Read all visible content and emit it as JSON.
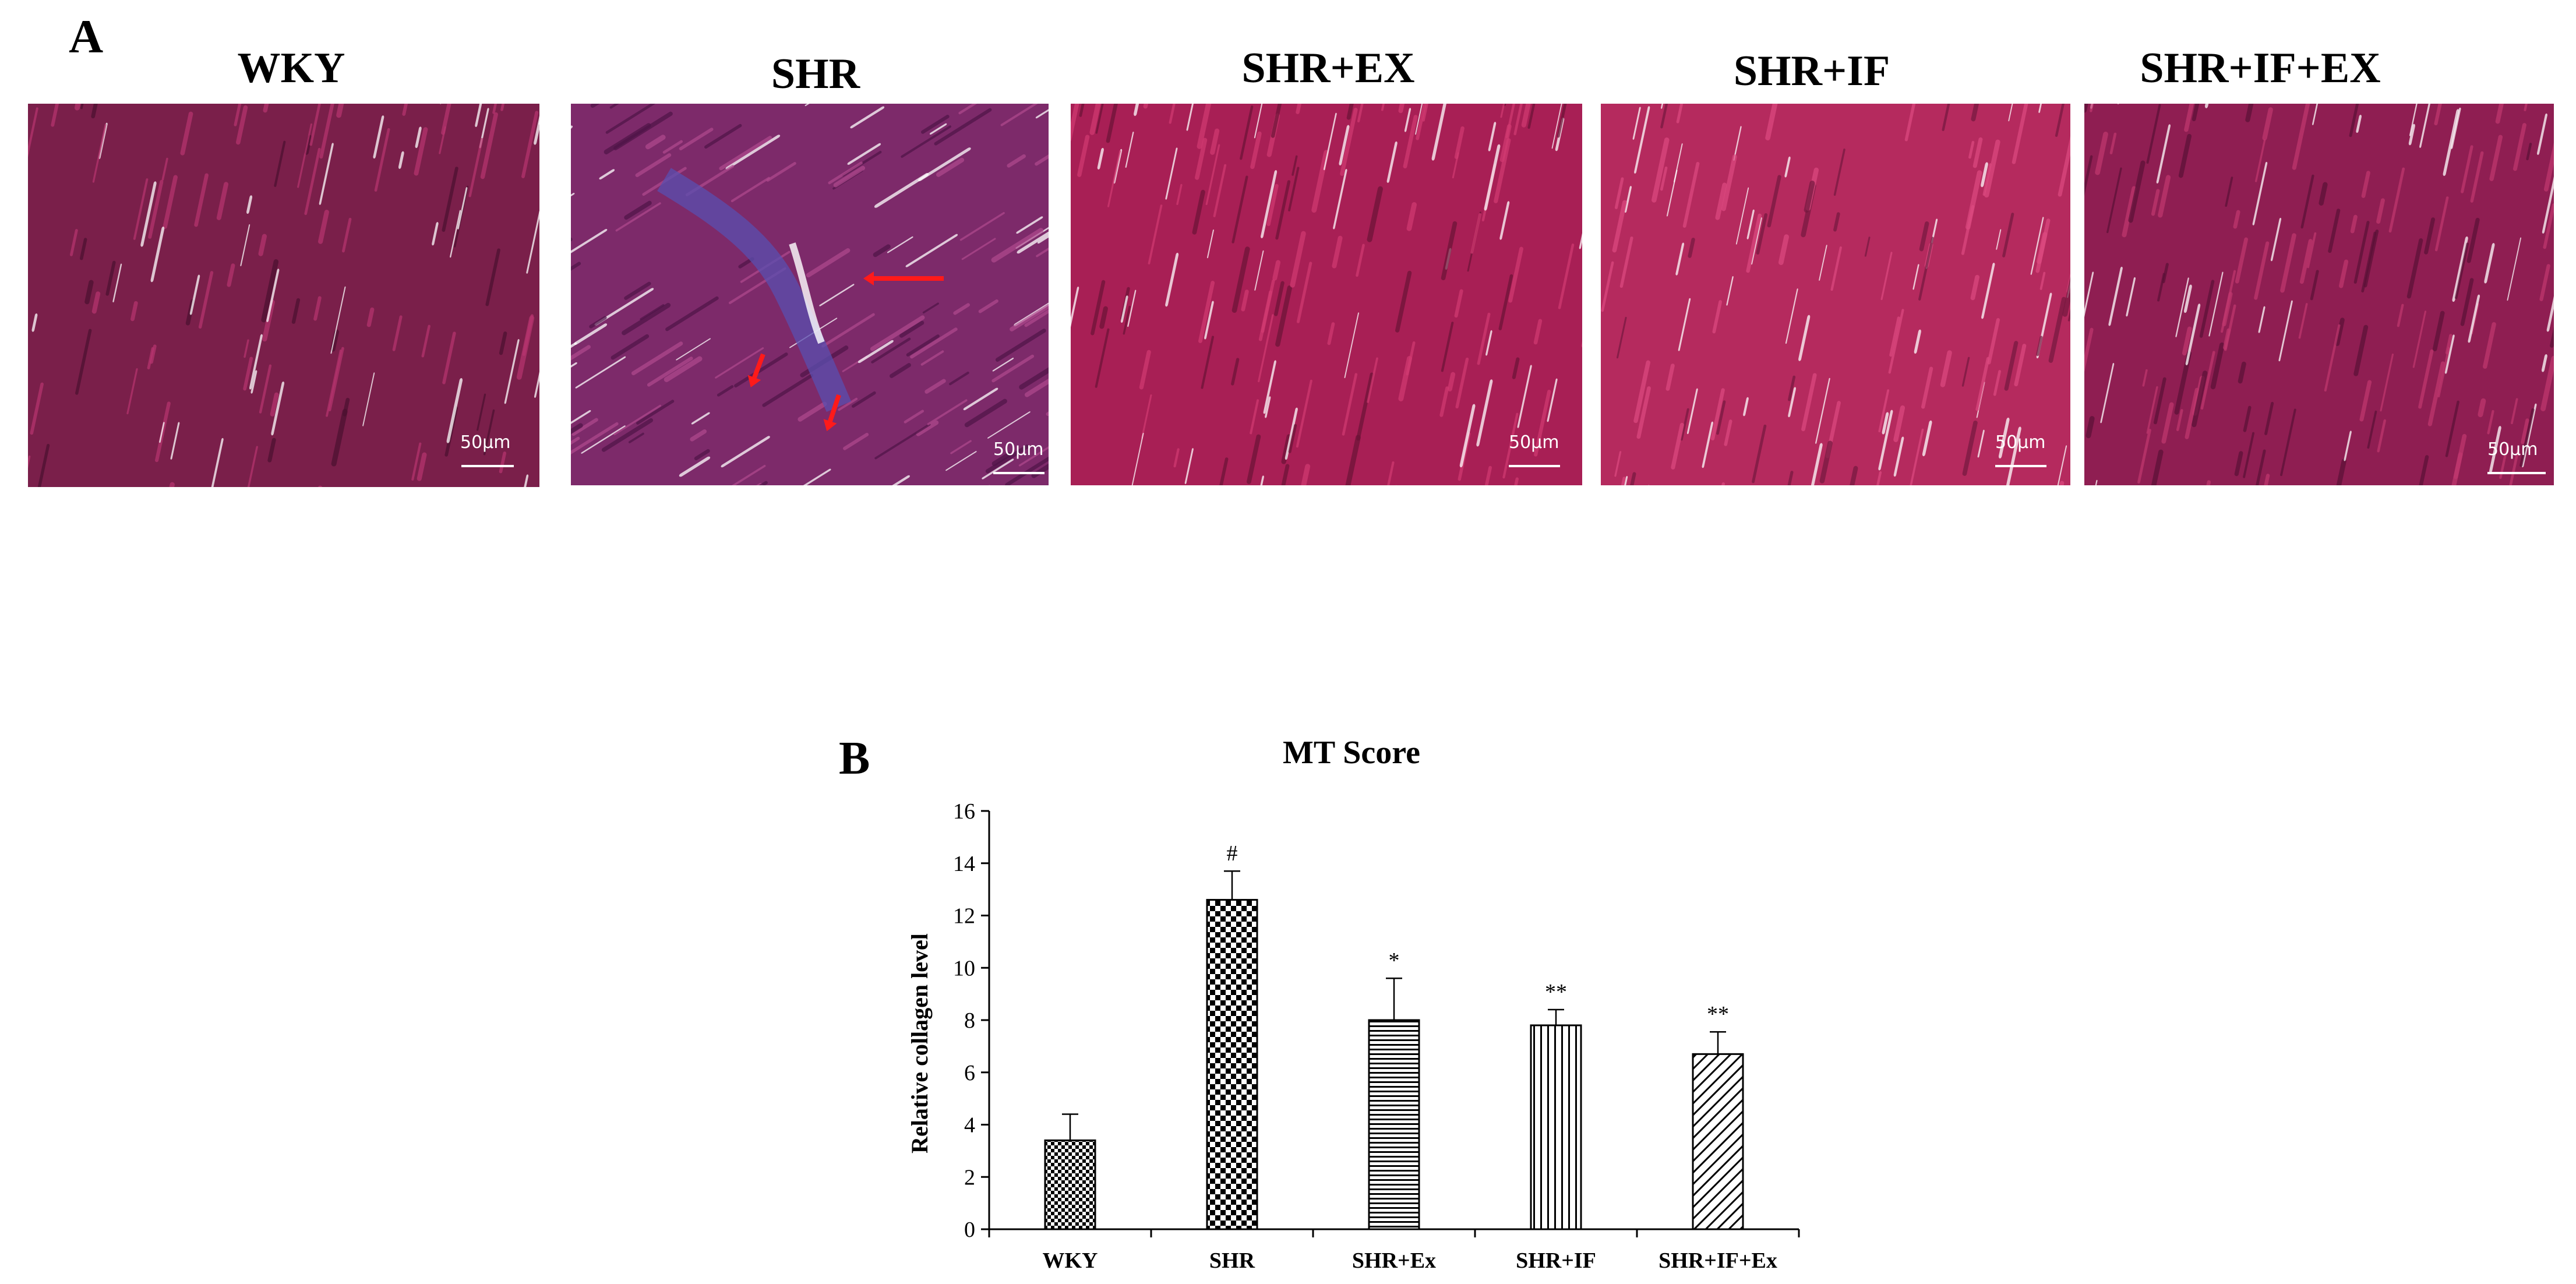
{
  "panel_a": {
    "letter": "A",
    "images": [
      {
        "title": "WKY",
        "scale_label": "50μm",
        "palette": {
          "base": "#7a1f4a",
          "fiber": "#b8346f",
          "dark": "#4a0f2f"
        }
      },
      {
        "title": "SHR",
        "scale_label": "50μm",
        "palette": {
          "base": "#7d2a6a",
          "fiber": "#b04a8f",
          "dark": "#4e1447"
        },
        "annotations": [
          "red-arrow",
          "red-arrow",
          "red-arrow"
        ]
      },
      {
        "title": "SHR+EX",
        "scale_label": "50μm",
        "palette": {
          "base": "#a81f55",
          "fiber": "#d23a72",
          "dark": "#6a1236"
        }
      },
      {
        "title": "SHR+IF",
        "scale_label": "50μm",
        "palette": {
          "base": "#b52a5e",
          "fiber": "#dd4a80",
          "dark": "#74183e"
        }
      },
      {
        "title": "SHR+IF+EX",
        "scale_label": "50μm",
        "palette": {
          "base": "#8f1e52",
          "fiber": "#c0386f",
          "dark": "#581036"
        }
      }
    ]
  },
  "panel_b": {
    "letter": "B"
  },
  "chart_data": {
    "type": "bar",
    "title": "MT Score",
    "xlabel": "",
    "ylabel": "Relative  collagen level",
    "ylim": [
      0,
      16
    ],
    "yticks": [
      "0",
      "2",
      "4",
      "6",
      "8",
      "10",
      "12",
      "14",
      "16"
    ],
    "categories": [
      "WKY",
      "SHR",
      "SHR+Ex",
      "SHR+IF",
      "SHR+IF+Ex"
    ],
    "values": [
      3.4,
      12.6,
      8.0,
      7.8,
      6.7
    ],
    "errors": [
      1.0,
      1.1,
      1.6,
      0.6,
      0.85
    ],
    "significance": [
      "",
      "#",
      "*",
      "**",
      "**"
    ],
    "patterns": [
      "checker-small",
      "checker-large",
      "horizontal",
      "vertical",
      "diagonal"
    ],
    "grid": false
  }
}
